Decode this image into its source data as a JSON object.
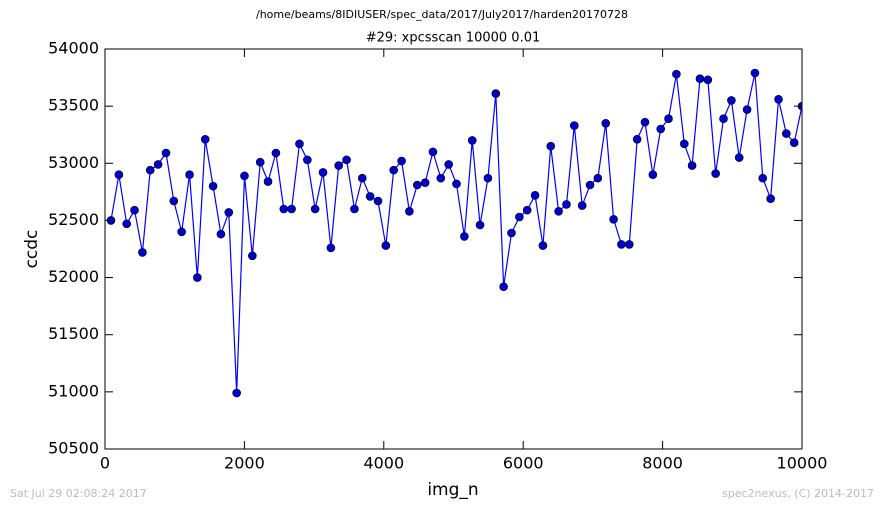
{
  "chart_data": {
    "type": "line",
    "title": "/home/beams/8IDIUSER/spec_data/2017/July2017/harden20170728",
    "subtitle": "#29: xpcsscan 10000 0.01",
    "xlabel": "img_n",
    "ylabel": "ccdc",
    "footer_left": "Sat Jul 29 02:08:24 2017",
    "footer_right": "spec2nexus, (C) 2014-2017",
    "x": [
      86,
      199,
      311,
      424,
      537,
      649,
      762,
      875,
      987,
      1100,
      1213,
      1325,
      1438,
      1551,
      1663,
      1776,
      1889,
      2001,
      2114,
      2227,
      2339,
      2452,
      2565,
      2677,
      2790,
      2903,
      3015,
      3128,
      3241,
      3353,
      3466,
      3579,
      3691,
      3804,
      3917,
      4029,
      4142,
      4255,
      4367,
      4480,
      4593,
      4705,
      4818,
      4931,
      5043,
      5156,
      5269,
      5381,
      5494,
      5607,
      5719,
      5832,
      5945,
      6057,
      6170,
      6283,
      6395,
      6508,
      6621,
      6733,
      6846,
      6959,
      7071,
      7184,
      7297,
      7409,
      7522,
      7635,
      7747,
      7860,
      7973,
      8085,
      8198,
      8311,
      8423,
      8536,
      8649,
      8761,
      8874,
      8987,
      9099,
      9212,
      9325,
      9437,
      9550,
      9663,
      9775,
      9888,
      10000
    ],
    "series": [
      {
        "name": "ccdc",
        "color": "#0000ff",
        "marker_color": "#0000cc",
        "values": [
          52500,
          52900,
          52470,
          52590,
          52220,
          52940,
          52990,
          53090,
          52670,
          52400,
          52900,
          52000,
          53210,
          52800,
          52380,
          52570,
          50990,
          52890,
          52190,
          53010,
          52840,
          53090,
          52600,
          52600,
          53170,
          53030,
          52600,
          52920,
          52260,
          52980,
          53030,
          52600,
          52870,
          52710,
          52670,
          52280,
          52940,
          53020,
          52580,
          52810,
          52830,
          53100,
          52870,
          52990,
          52820,
          52360,
          53200,
          52460,
          52870,
          53610,
          51920,
          52390,
          52530,
          52590,
          52720,
          52280,
          53150,
          52580,
          52640,
          53330,
          52630,
          52810,
          52870,
          53350,
          52510,
          52290,
          52290,
          53210,
          53360,
          52900,
          53300,
          53390,
          53780,
          53170,
          52980,
          53740,
          53730,
          52910,
          53390,
          53550,
          53050,
          53470,
          53790,
          52870,
          52690,
          53560,
          53260,
          53180,
          53500
        ]
      }
    ],
    "xlim": [
      0,
      10000
    ],
    "xticks": [
      0,
      2000,
      4000,
      6000,
      8000,
      10000
    ],
    "ylim": [
      50500,
      54000
    ],
    "yticks": [
      50500,
      51000,
      51500,
      52000,
      52500,
      53000,
      53500,
      54000
    ],
    "grid": false
  }
}
